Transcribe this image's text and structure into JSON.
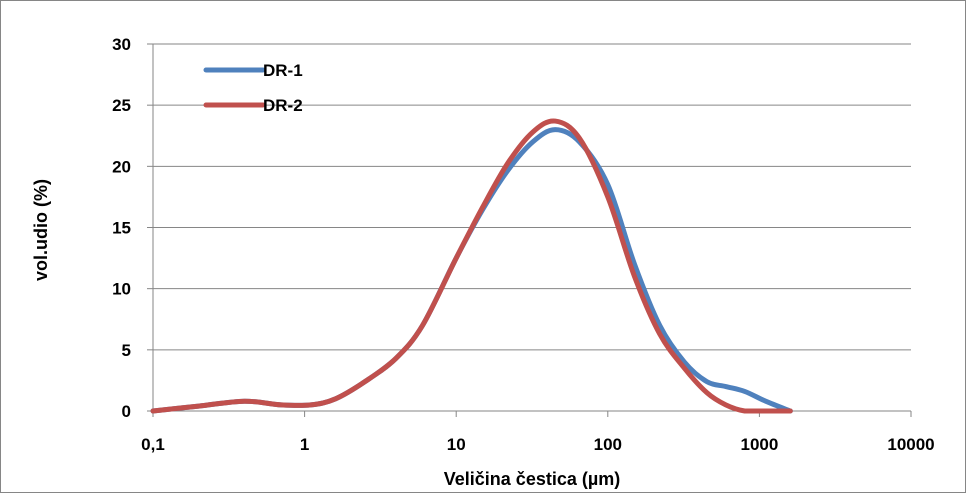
{
  "chart_data": {
    "type": "line",
    "xscale": "log",
    "xlim": [
      0.1,
      10000
    ],
    "ylim": [
      0,
      30
    ],
    "xticks": [
      "0,1",
      "1",
      "10",
      "100",
      "1000",
      "10000"
    ],
    "xtick_values": [
      0.1,
      1,
      10,
      100,
      1000,
      10000
    ],
    "yticks": [
      "0",
      "5",
      "10",
      "15",
      "20",
      "25",
      "30"
    ],
    "ytick_values": [
      0,
      5,
      10,
      15,
      20,
      25,
      30
    ],
    "xlabel": "Veličina čestica (µm)",
    "ylabel": "vol.udio (%)",
    "grid": "horizontal",
    "legend_position": "top-left",
    "series": [
      {
        "name": "DR-1",
        "color": "#4f81bd",
        "x": [
          0.1,
          0.2,
          0.4,
          0.7,
          1.1,
          1.6,
          2.5,
          4,
          6,
          10,
          15,
          22,
          32,
          45,
          65,
          100,
          150,
          220,
          320,
          450,
          600,
          800,
          1100,
          1600
        ],
        "y": [
          0,
          0.4,
          0.8,
          0.5,
          0.5,
          1,
          2.4,
          4.3,
          7,
          12.5,
          16.5,
          19.7,
          22,
          23,
          22,
          18.5,
          12,
          7,
          4,
          2.4,
          2,
          1.6,
          0.8,
          0
        ]
      },
      {
        "name": "DR-2",
        "color": "#c0504d",
        "x": [
          0.1,
          0.2,
          0.4,
          0.7,
          1.1,
          1.6,
          2.5,
          4,
          6,
          10,
          15,
          22,
          32,
          45,
          65,
          100,
          150,
          220,
          320,
          450,
          600,
          800,
          1100,
          1600
        ],
        "y": [
          0,
          0.4,
          0.8,
          0.5,
          0.5,
          1,
          2.4,
          4.3,
          7,
          12.5,
          16.7,
          20.3,
          22.8,
          23.7,
          22.3,
          17.5,
          11,
          6.3,
          3.5,
          1.5,
          0.5,
          0,
          0,
          0
        ]
      }
    ]
  }
}
